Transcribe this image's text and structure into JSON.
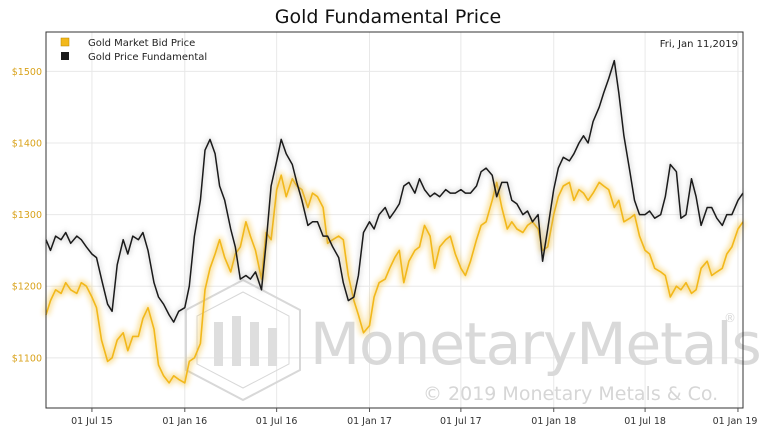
{
  "colors": {
    "gold": "#f2b81b",
    "fundamental": "#1a1a1a",
    "ytick": "#d9a21a",
    "xtick": "#333333",
    "grid": "#e8e8e8",
    "watermark": "#d6d6d6"
  },
  "date_label": "Fri, Jan 11,2019",
  "watermark": {
    "brand": "MonetaryMetals",
    "registered": "®",
    "copyright": "© 2019 Monetary Metals & Co."
  },
  "chart_data": {
    "type": "line",
    "title": "Gold Fundamental Price",
    "xlabel": "",
    "ylabel": "",
    "x_ticks": [
      "01 Jul 15",
      "01 Jan 16",
      "01 Jul 16",
      "01 Jan 17",
      "01 Jul 17",
      "01 Jan 18",
      "01 Jul 18",
      "01 Jan 19"
    ],
    "y_ticks": [
      "$1100",
      "$1200",
      "$1300",
      "$1400",
      "$1500"
    ],
    "x_range": [
      "2015-04-01",
      "2019-01-11"
    ],
    "ylim": [
      1030,
      1555
    ],
    "grid": true,
    "legend_position": "top-left",
    "series": [
      {
        "name": "Gold Market Bid Price",
        "color": "#f2b81b",
        "points": [
          [
            "2015-04-01",
            1160
          ],
          [
            "2015-04-10",
            1180
          ],
          [
            "2015-04-20",
            1195
          ],
          [
            "2015-05-01",
            1190
          ],
          [
            "2015-05-10",
            1205
          ],
          [
            "2015-05-20",
            1195
          ],
          [
            "2015-06-01",
            1190
          ],
          [
            "2015-06-10",
            1205
          ],
          [
            "2015-06-20",
            1200
          ],
          [
            "2015-07-01",
            1185
          ],
          [
            "2015-07-10",
            1170
          ],
          [
            "2015-07-20",
            1125
          ],
          [
            "2015-08-01",
            1095
          ],
          [
            "2015-08-10",
            1100
          ],
          [
            "2015-08-20",
            1125
          ],
          [
            "2015-09-01",
            1135
          ],
          [
            "2015-09-10",
            1110
          ],
          [
            "2015-09-20",
            1130
          ],
          [
            "2015-10-01",
            1130
          ],
          [
            "2015-10-10",
            1155
          ],
          [
            "2015-10-20",
            1170
          ],
          [
            "2015-11-01",
            1140
          ],
          [
            "2015-11-10",
            1090
          ],
          [
            "2015-11-20",
            1075
          ],
          [
            "2015-12-01",
            1065
          ],
          [
            "2015-12-10",
            1075
          ],
          [
            "2015-12-20",
            1070
          ],
          [
            "2016-01-01",
            1065
          ],
          [
            "2016-01-10",
            1095
          ],
          [
            "2016-01-20",
            1100
          ],
          [
            "2016-02-01",
            1120
          ],
          [
            "2016-02-10",
            1195
          ],
          [
            "2016-02-20",
            1225
          ],
          [
            "2016-03-01",
            1245
          ],
          [
            "2016-03-10",
            1265
          ],
          [
            "2016-03-20",
            1240
          ],
          [
            "2016-04-01",
            1220
          ],
          [
            "2016-04-10",
            1245
          ],
          [
            "2016-04-20",
            1255
          ],
          [
            "2016-05-01",
            1290
          ],
          [
            "2016-05-10",
            1270
          ],
          [
            "2016-05-20",
            1250
          ],
          [
            "2016-06-01",
            1210
          ],
          [
            "2016-06-10",
            1275
          ],
          [
            "2016-06-20",
            1265
          ],
          [
            "2016-07-01",
            1335
          ],
          [
            "2016-07-10",
            1355
          ],
          [
            "2016-07-20",
            1325
          ],
          [
            "2016-08-01",
            1350
          ],
          [
            "2016-08-10",
            1340
          ],
          [
            "2016-08-20",
            1335
          ],
          [
            "2016-09-01",
            1310
          ],
          [
            "2016-09-10",
            1330
          ],
          [
            "2016-09-20",
            1325
          ],
          [
            "2016-10-01",
            1310
          ],
          [
            "2016-10-10",
            1260
          ],
          [
            "2016-10-20",
            1265
          ],
          [
            "2016-11-01",
            1270
          ],
          [
            "2016-11-10",
            1265
          ],
          [
            "2016-11-20",
            1215
          ],
          [
            "2016-12-01",
            1180
          ],
          [
            "2016-12-10",
            1160
          ],
          [
            "2016-12-20",
            1135
          ],
          [
            "2017-01-01",
            1145
          ],
          [
            "2017-01-10",
            1185
          ],
          [
            "2017-01-20",
            1205
          ],
          [
            "2017-02-01",
            1210
          ],
          [
            "2017-02-10",
            1225
          ],
          [
            "2017-02-20",
            1240
          ],
          [
            "2017-03-01",
            1250
          ],
          [
            "2017-03-10",
            1205
          ],
          [
            "2017-03-20",
            1235
          ],
          [
            "2017-04-01",
            1250
          ],
          [
            "2017-04-10",
            1255
          ],
          [
            "2017-04-20",
            1285
          ],
          [
            "2017-05-01",
            1270
          ],
          [
            "2017-05-10",
            1225
          ],
          [
            "2017-05-20",
            1255
          ],
          [
            "2017-06-01",
            1265
          ],
          [
            "2017-06-10",
            1270
          ],
          [
            "2017-06-20",
            1245
          ],
          [
            "2017-07-01",
            1225
          ],
          [
            "2017-07-10",
            1215
          ],
          [
            "2017-07-20",
            1235
          ],
          [
            "2017-08-01",
            1265
          ],
          [
            "2017-08-10",
            1285
          ],
          [
            "2017-08-20",
            1290
          ],
          [
            "2017-09-01",
            1320
          ],
          [
            "2017-09-10",
            1345
          ],
          [
            "2017-09-20",
            1310
          ],
          [
            "2017-10-01",
            1280
          ],
          [
            "2017-10-10",
            1290
          ],
          [
            "2017-10-20",
            1280
          ],
          [
            "2017-11-01",
            1275
          ],
          [
            "2017-11-10",
            1285
          ],
          [
            "2017-11-20",
            1290
          ],
          [
            "2017-12-01",
            1280
          ],
          [
            "2017-12-10",
            1250
          ],
          [
            "2017-12-20",
            1255
          ],
          [
            "2018-01-01",
            1300
          ],
          [
            "2018-01-10",
            1325
          ],
          [
            "2018-01-20",
            1340
          ],
          [
            "2018-02-01",
            1345
          ],
          [
            "2018-02-10",
            1320
          ],
          [
            "2018-02-20",
            1335
          ],
          [
            "2018-03-01",
            1330
          ],
          [
            "2018-03-10",
            1320
          ],
          [
            "2018-03-20",
            1330
          ],
          [
            "2018-04-01",
            1345
          ],
          [
            "2018-04-10",
            1340
          ],
          [
            "2018-04-20",
            1335
          ],
          [
            "2018-05-01",
            1310
          ],
          [
            "2018-05-10",
            1320
          ],
          [
            "2018-05-20",
            1290
          ],
          [
            "2018-06-01",
            1295
          ],
          [
            "2018-06-10",
            1300
          ],
          [
            "2018-06-20",
            1270
          ],
          [
            "2018-07-01",
            1250
          ],
          [
            "2018-07-10",
            1245
          ],
          [
            "2018-07-20",
            1225
          ],
          [
            "2018-08-01",
            1220
          ],
          [
            "2018-08-10",
            1215
          ],
          [
            "2018-08-20",
            1185
          ],
          [
            "2018-09-01",
            1200
          ],
          [
            "2018-09-10",
            1195
          ],
          [
            "2018-09-20",
            1205
          ],
          [
            "2018-10-01",
            1190
          ],
          [
            "2018-10-10",
            1195
          ],
          [
            "2018-10-20",
            1225
          ],
          [
            "2018-11-01",
            1235
          ],
          [
            "2018-11-10",
            1215
          ],
          [
            "2018-11-20",
            1220
          ],
          [
            "2018-12-01",
            1225
          ],
          [
            "2018-12-10",
            1245
          ],
          [
            "2018-12-20",
            1255
          ],
          [
            "2019-01-01",
            1280
          ],
          [
            "2019-01-11",
            1290
          ]
        ]
      },
      {
        "name": "Gold Price Fundamental",
        "color": "#1a1a1a",
        "points": [
          [
            "2015-04-01",
            1265
          ],
          [
            "2015-04-10",
            1250
          ],
          [
            "2015-04-20",
            1270
          ],
          [
            "2015-05-01",
            1265
          ],
          [
            "2015-05-10",
            1275
          ],
          [
            "2015-05-20",
            1260
          ],
          [
            "2015-06-01",
            1270
          ],
          [
            "2015-06-10",
            1265
          ],
          [
            "2015-06-20",
            1255
          ],
          [
            "2015-07-01",
            1245
          ],
          [
            "2015-07-10",
            1240
          ],
          [
            "2015-07-20",
            1210
          ],
          [
            "2015-08-01",
            1175
          ],
          [
            "2015-08-10",
            1165
          ],
          [
            "2015-08-20",
            1230
          ],
          [
            "2015-09-01",
            1265
          ],
          [
            "2015-09-10",
            1245
          ],
          [
            "2015-09-20",
            1270
          ],
          [
            "2015-10-01",
            1265
          ],
          [
            "2015-10-10",
            1275
          ],
          [
            "2015-10-20",
            1250
          ],
          [
            "2015-11-01",
            1205
          ],
          [
            "2015-11-10",
            1185
          ],
          [
            "2015-11-20",
            1175
          ],
          [
            "2015-12-01",
            1160
          ],
          [
            "2015-12-10",
            1150
          ],
          [
            "2015-12-20",
            1165
          ],
          [
            "2016-01-01",
            1170
          ],
          [
            "2016-01-10",
            1200
          ],
          [
            "2016-01-20",
            1270
          ],
          [
            "2016-02-01",
            1320
          ],
          [
            "2016-02-10",
            1390
          ],
          [
            "2016-02-20",
            1405
          ],
          [
            "2016-03-01",
            1385
          ],
          [
            "2016-03-10",
            1340
          ],
          [
            "2016-03-20",
            1320
          ],
          [
            "2016-04-01",
            1280
          ],
          [
            "2016-04-10",
            1255
          ],
          [
            "2016-04-20",
            1210
          ],
          [
            "2016-05-01",
            1215
          ],
          [
            "2016-05-10",
            1210
          ],
          [
            "2016-05-20",
            1220
          ],
          [
            "2016-06-01",
            1195
          ],
          [
            "2016-06-10",
            1260
          ],
          [
            "2016-06-20",
            1340
          ],
          [
            "2016-07-01",
            1375
          ],
          [
            "2016-07-10",
            1405
          ],
          [
            "2016-07-20",
            1385
          ],
          [
            "2016-08-01",
            1370
          ],
          [
            "2016-08-10",
            1345
          ],
          [
            "2016-08-20",
            1320
          ],
          [
            "2016-09-01",
            1285
          ],
          [
            "2016-09-10",
            1290
          ],
          [
            "2016-09-20",
            1290
          ],
          [
            "2016-10-01",
            1270
          ],
          [
            "2016-10-10",
            1270
          ],
          [
            "2016-10-20",
            1255
          ],
          [
            "2016-11-01",
            1240
          ],
          [
            "2016-11-10",
            1205
          ],
          [
            "2016-11-20",
            1180
          ],
          [
            "2016-12-01",
            1185
          ],
          [
            "2016-12-10",
            1215
          ],
          [
            "2016-12-20",
            1275
          ],
          [
            "2017-01-01",
            1290
          ],
          [
            "2017-01-10",
            1280
          ],
          [
            "2017-01-20",
            1300
          ],
          [
            "2017-02-01",
            1310
          ],
          [
            "2017-02-10",
            1295
          ],
          [
            "2017-02-20",
            1305
          ],
          [
            "2017-03-01",
            1315
          ],
          [
            "2017-03-10",
            1340
          ],
          [
            "2017-03-20",
            1345
          ],
          [
            "2017-04-01",
            1330
          ],
          [
            "2017-04-10",
            1350
          ],
          [
            "2017-04-20",
            1335
          ],
          [
            "2017-05-01",
            1325
          ],
          [
            "2017-05-10",
            1330
          ],
          [
            "2017-05-20",
            1325
          ],
          [
            "2017-06-01",
            1335
          ],
          [
            "2017-06-10",
            1330
          ],
          [
            "2017-06-20",
            1330
          ],
          [
            "2017-07-01",
            1335
          ],
          [
            "2017-07-10",
            1330
          ],
          [
            "2017-07-20",
            1330
          ],
          [
            "2017-08-01",
            1340
          ],
          [
            "2017-08-10",
            1360
          ],
          [
            "2017-08-20",
            1365
          ],
          [
            "2017-09-01",
            1355
          ],
          [
            "2017-09-10",
            1325
          ],
          [
            "2017-09-20",
            1345
          ],
          [
            "2017-10-01",
            1345
          ],
          [
            "2017-10-10",
            1320
          ],
          [
            "2017-10-20",
            1315
          ],
          [
            "2017-11-01",
            1300
          ],
          [
            "2017-11-10",
            1305
          ],
          [
            "2017-11-20",
            1290
          ],
          [
            "2017-12-01",
            1300
          ],
          [
            "2017-12-10",
            1235
          ],
          [
            "2017-12-20",
            1280
          ],
          [
            "2018-01-01",
            1335
          ],
          [
            "2018-01-10",
            1365
          ],
          [
            "2018-01-20",
            1380
          ],
          [
            "2018-02-01",
            1375
          ],
          [
            "2018-02-10",
            1385
          ],
          [
            "2018-02-20",
            1400
          ],
          [
            "2018-03-01",
            1410
          ],
          [
            "2018-03-10",
            1400
          ],
          [
            "2018-03-20",
            1430
          ],
          [
            "2018-04-01",
            1450
          ],
          [
            "2018-04-10",
            1470
          ],
          [
            "2018-04-20",
            1490
          ],
          [
            "2018-05-01",
            1515
          ],
          [
            "2018-05-10",
            1470
          ],
          [
            "2018-05-20",
            1410
          ],
          [
            "2018-06-01",
            1360
          ],
          [
            "2018-06-10",
            1320
          ],
          [
            "2018-06-20",
            1300
          ],
          [
            "2018-07-01",
            1300
          ],
          [
            "2018-07-10",
            1305
          ],
          [
            "2018-07-20",
            1295
          ],
          [
            "2018-08-01",
            1300
          ],
          [
            "2018-08-10",
            1325
          ],
          [
            "2018-08-20",
            1370
          ],
          [
            "2018-09-01",
            1360
          ],
          [
            "2018-09-10",
            1295
          ],
          [
            "2018-09-20",
            1300
          ],
          [
            "2018-10-01",
            1350
          ],
          [
            "2018-10-10",
            1325
          ],
          [
            "2018-10-20",
            1285
          ],
          [
            "2018-11-01",
            1310
          ],
          [
            "2018-11-10",
            1310
          ],
          [
            "2018-11-20",
            1295
          ],
          [
            "2018-12-01",
            1285
          ],
          [
            "2018-12-10",
            1300
          ],
          [
            "2018-12-20",
            1300
          ],
          [
            "2019-01-01",
            1320
          ],
          [
            "2019-01-11",
            1330
          ]
        ]
      }
    ]
  }
}
